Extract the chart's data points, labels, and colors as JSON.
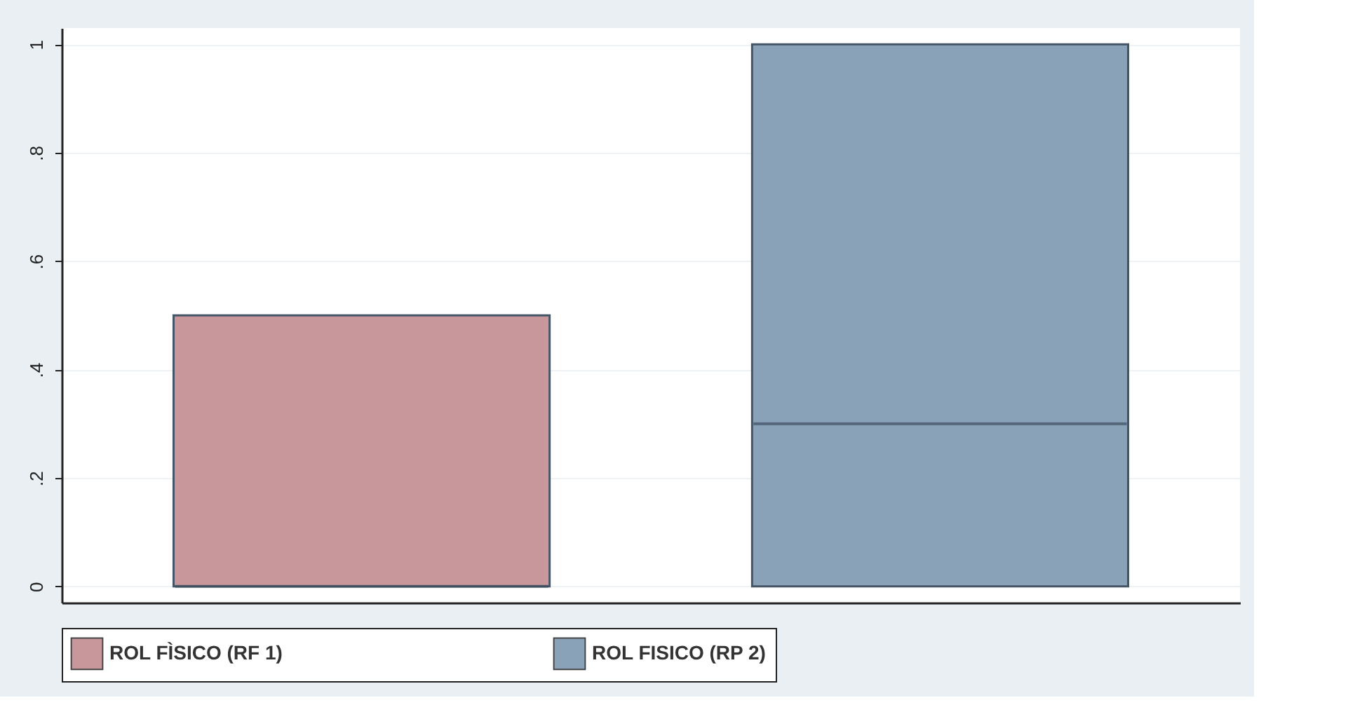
{
  "chart_data": {
    "type": "box",
    "categories": [
      null
    ],
    "series": [
      {
        "name": "ROL FÌSICO (RF 1)",
        "color": "#c8979b",
        "boxes": [
          {
            "low": 0,
            "q1": 0,
            "median": 0,
            "q3": 0.5,
            "high": 0.5
          }
        ]
      },
      {
        "name": "ROL FISICO (RP 2)",
        "color": "#8aa2b8",
        "boxes": [
          {
            "low": 0,
            "q1": 0,
            "median": 0.3,
            "q3": 1,
            "high": 1
          }
        ]
      }
    ],
    "ylim": [
      -0.03,
      1.03
    ],
    "yticks": [
      0,
      {
        "value": 0.2,
        "label": ".2"
      },
      {
        "value": 0.4,
        "label": ".4"
      },
      {
        "value": 0.6,
        "label": ".6"
      },
      {
        "value": 0.8,
        "label": ".8"
      },
      1
    ],
    "grid": "y",
    "legend": "bottom",
    "tick_labels": "y"
  }
}
